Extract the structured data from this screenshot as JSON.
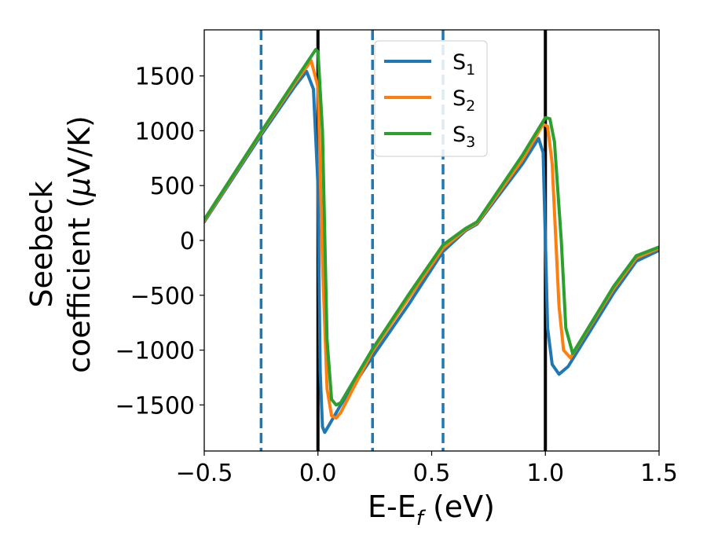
{
  "chart_data": {
    "type": "line",
    "xlabel": {
      "main": "E-E",
      "sub": "f",
      "unit": " (eV)"
    },
    "ylabel": {
      "line1": "Seebeck",
      "line2_text": "coefficient  (",
      "line2_mu": "μ",
      "line2_unit": "V/K)"
    },
    "xlim": [
      -0.5,
      1.5
    ],
    "ylim": [
      -1920,
      1920
    ],
    "xticks": [
      -0.5,
      0.0,
      0.5,
      1.0,
      1.5
    ],
    "xtick_labels": [
      "−0.5",
      "0.0",
      "0.5",
      "1.0",
      "1.5"
    ],
    "yticks": [
      -1500,
      -1000,
      -500,
      0,
      500,
      1000,
      1500
    ],
    "ytick_labels": [
      "−1500",
      "−1000",
      "−500",
      "0",
      "500",
      "1000",
      "1500"
    ],
    "grid": false,
    "legend_position": "top-center",
    "vertical_lines": [
      {
        "x": -0.25,
        "style": "dashed",
        "color": "#1f77b4"
      },
      {
        "x": 0.0,
        "style": "solid",
        "color": "#000000"
      },
      {
        "x": 0.24,
        "style": "dashed",
        "color": "#1f77b4"
      },
      {
        "x": 0.55,
        "style": "dashed",
        "color": "#1f77b4"
      },
      {
        "x": 1.0,
        "style": "solid",
        "color": "#000000"
      }
    ],
    "series": [
      {
        "name": "S",
        "sub": "1",
        "color": "#1f77b4",
        "x": [
          -0.5,
          -0.25,
          -0.1,
          -0.05,
          -0.02,
          0.0,
          0.01,
          0.02,
          0.03,
          0.05,
          0.1,
          0.24,
          0.4,
          0.55,
          0.65,
          0.7,
          0.9,
          0.97,
          0.99,
          1.01,
          1.03,
          1.06,
          1.1,
          1.3,
          1.4,
          1.5
        ],
        "y": [
          170,
          960,
          1410,
          1540,
          1380,
          500,
          -1200,
          -1700,
          -1750,
          -1680,
          -1500,
          -1060,
          -580,
          -100,
          90,
          150,
          700,
          930,
          800,
          -800,
          -1130,
          -1220,
          -1150,
          -480,
          -190,
          -90
        ]
      },
      {
        "name": "S",
        "sub": "2",
        "color": "#ff7f0e",
        "x": [
          -0.5,
          -0.25,
          -0.1,
          -0.03,
          0.0,
          0.02,
          0.04,
          0.06,
          0.08,
          0.1,
          0.24,
          0.4,
          0.55,
          0.65,
          0.7,
          0.9,
          0.99,
          1.01,
          1.03,
          1.06,
          1.08,
          1.11,
          1.3,
          1.4,
          1.5
        ],
        "y": [
          180,
          980,
          1440,
          1640,
          1400,
          -200,
          -1350,
          -1600,
          -1620,
          -1570,
          -1010,
          -520,
          -70,
          100,
          160,
          740,
          1060,
          1040,
          700,
          -600,
          -1000,
          -1070,
          -440,
          -160,
          -70
        ]
      },
      {
        "name": "S",
        "sub": "3",
        "color": "#2ca02c",
        "x": [
          -0.5,
          -0.25,
          -0.1,
          -0.01,
          0.0,
          0.02,
          0.04,
          0.06,
          0.08,
          0.1,
          0.24,
          0.4,
          0.55,
          0.65,
          0.7,
          0.9,
          1.0,
          1.02,
          1.04,
          1.07,
          1.09,
          1.12,
          1.3,
          1.4,
          1.5
        ],
        "y": [
          190,
          990,
          1460,
          1740,
          1720,
          1000,
          -900,
          -1450,
          -1500,
          -1480,
          -990,
          -490,
          -40,
          110,
          170,
          780,
          1120,
          1110,
          900,
          0,
          -800,
          -1030,
          -420,
          -140,
          -60
        ]
      }
    ]
  }
}
